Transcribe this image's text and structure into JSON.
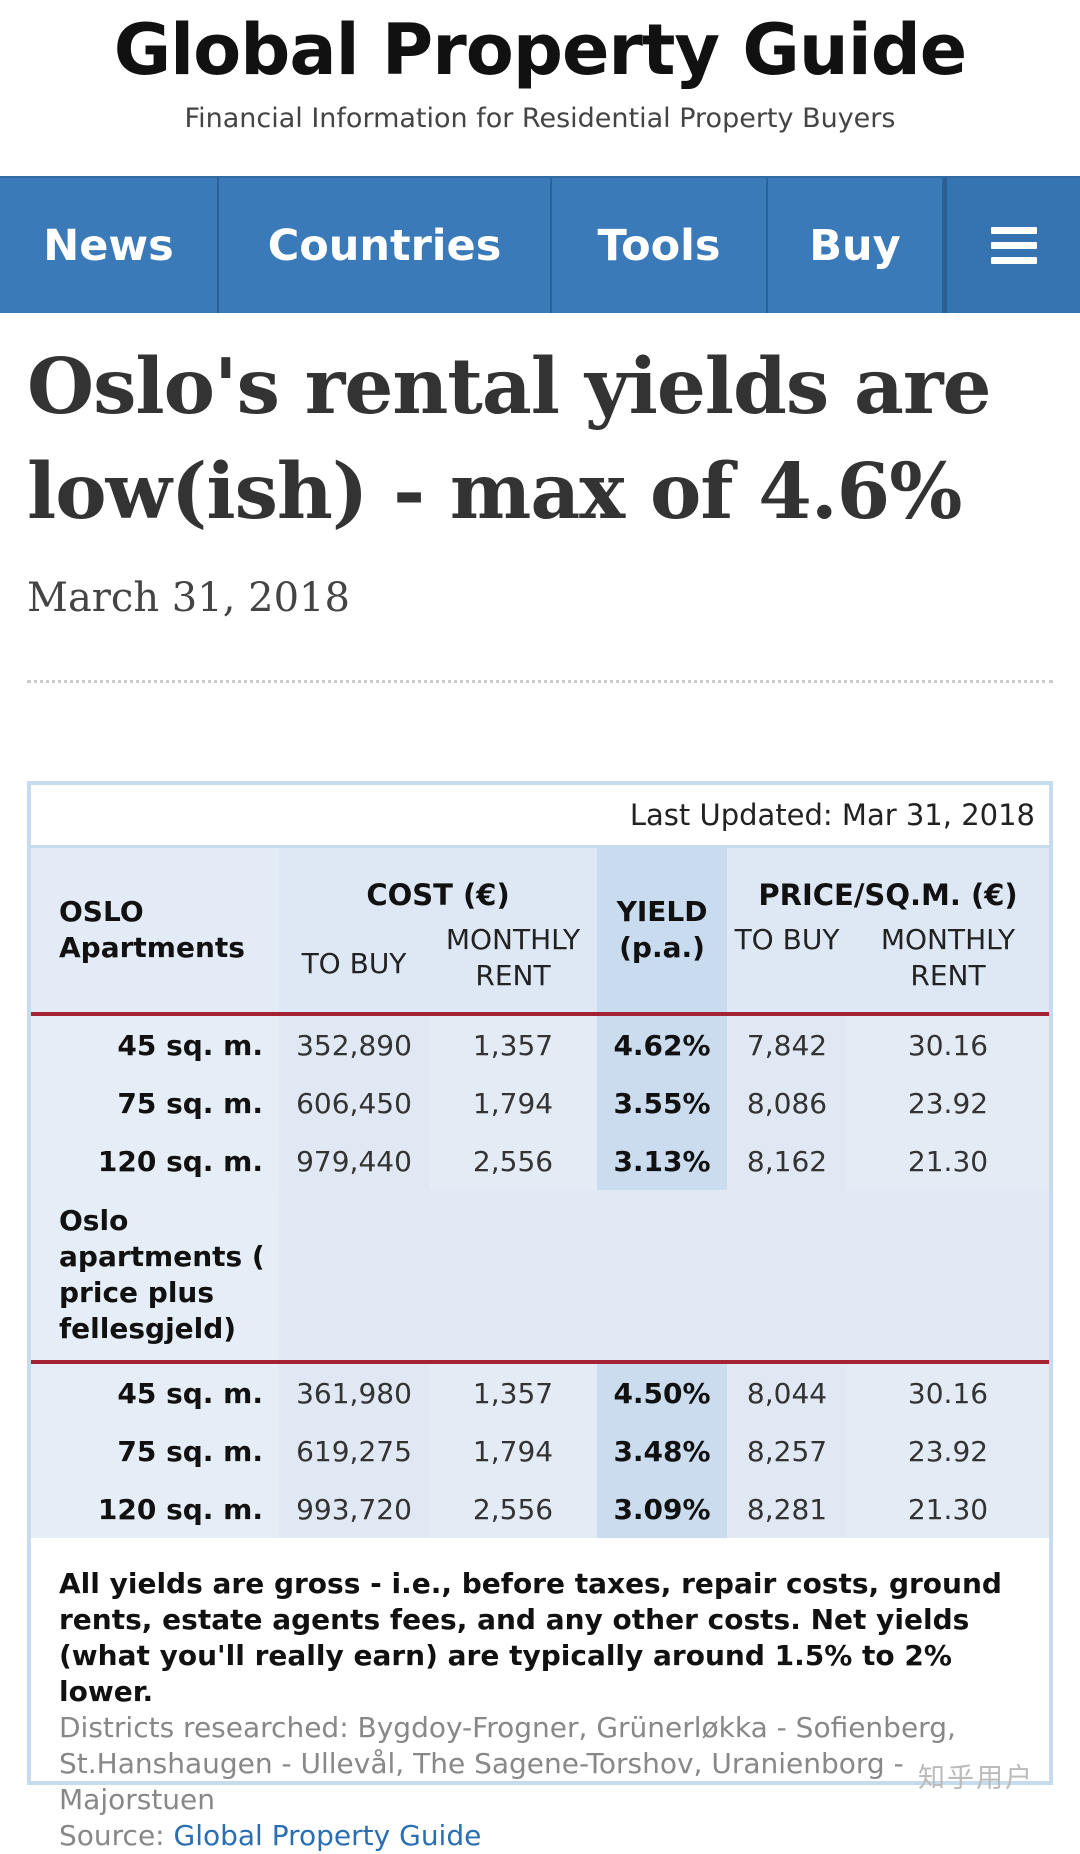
{
  "site": {
    "title": "Global Property Guide",
    "tagline": "Financial Information for Residential Property Buyers"
  },
  "nav": {
    "items": [
      "News",
      "Countries",
      "Tools",
      "Buy"
    ],
    "menu_icon": "hamburger-menu-icon"
  },
  "article": {
    "title": "Oslo's rental yields are low(ish) - max of 4.6%",
    "date": "March 31, 2018"
  },
  "table": {
    "last_updated": "Last Updated: Mar 31, 2018",
    "row_header": "OSLO Apartments",
    "cost_header": "COST (€)",
    "yield_header": "YIELD (p.a.)",
    "price_header": "PRICE/SQ.M. (€)",
    "cost_buy": "TO BUY",
    "cost_rent": "MONTHLY RENT",
    "price_buy": "TO BUY",
    "price_rent": "MONTHLY RENT",
    "section1_rows": [
      {
        "size": "45 sq. m.",
        "buy": "352,890",
        "rent": "1,357",
        "yield": "4.62%",
        "psqm_buy": "7,842",
        "psqm_rent": "30.16"
      },
      {
        "size": "75 sq. m.",
        "buy": "606,450",
        "rent": "1,794",
        "yield": "3.55%",
        "psqm_buy": "8,086",
        "psqm_rent": "23.92"
      },
      {
        "size": "120 sq. m.",
        "buy": "979,440",
        "rent": "2,556",
        "yield": "3.13%",
        "psqm_buy": "8,162",
        "psqm_rent": "21.30"
      }
    ],
    "section2_label": "Oslo apartments ( price plus fellesgjeld)",
    "section2_rows": [
      {
        "size": "45 sq. m.",
        "buy": "361,980",
        "rent": "1,357",
        "yield": "4.50%",
        "psqm_buy": "8,044",
        "psqm_rent": "30.16"
      },
      {
        "size": "75 sq. m.",
        "buy": "619,275",
        "rent": "1,794",
        "yield": "3.48%",
        "psqm_buy": "8,257",
        "psqm_rent": "23.92"
      },
      {
        "size": "120 sq. m.",
        "buy": "993,720",
        "rent": "2,556",
        "yield": "3.09%",
        "psqm_buy": "8,281",
        "psqm_rent": "21.30"
      }
    ],
    "note_bold": "All yields are gross - i.e., before taxes, repair costs, ground rents, estate agents fees, and any other costs. Net yields (what you'll really earn) are typically around 1.5% to 2% lower.",
    "note_districts": "Districts researched: Bygdoy-Frogner, Grünerløkka - Sofienberg, St.Hanshaugen - Ullevål, The Sagene-Torshov, Uranienborg - Majorstuen",
    "source_label": "Source: ",
    "source_link": "Global Property Guide"
  },
  "watermark": "知乎用户"
}
